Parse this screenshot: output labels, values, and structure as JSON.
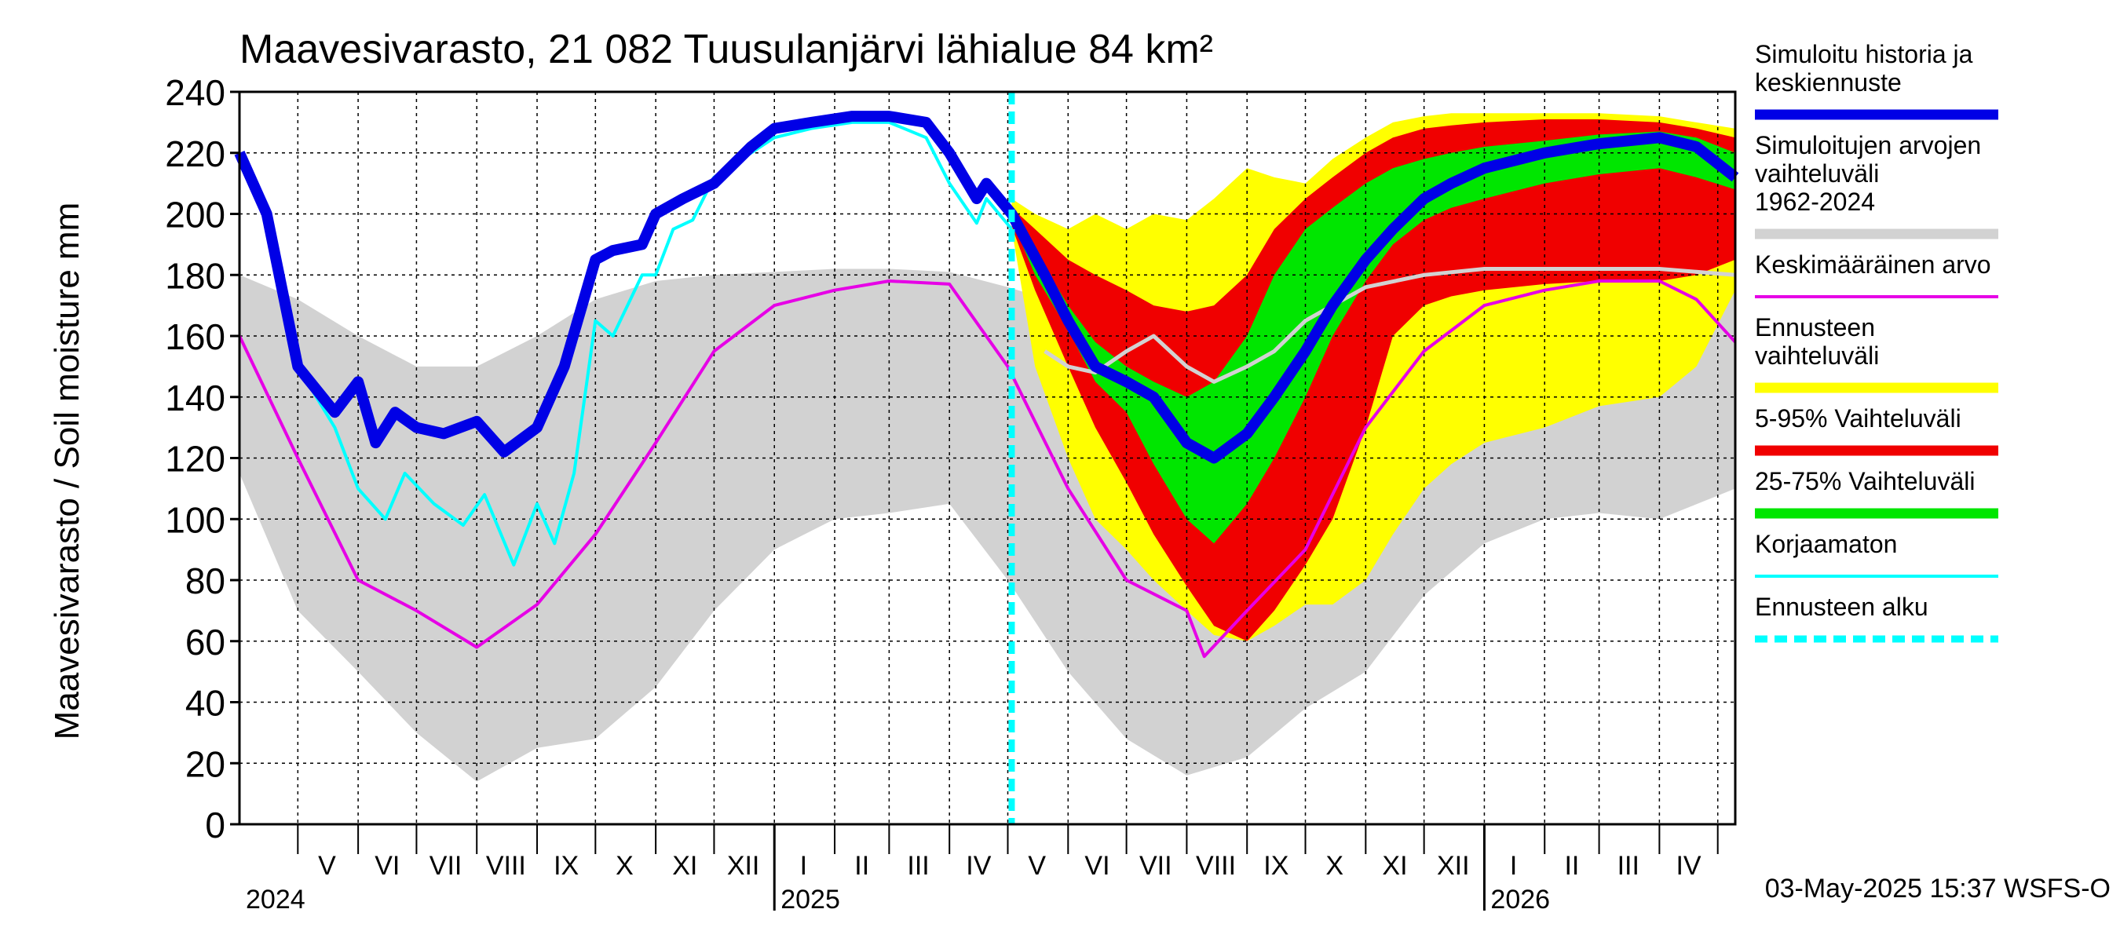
{
  "chart_data": {
    "type": "area",
    "title": "Maavesivarasto, 21 082 Tuusulanjärvi lähialue 84 km²",
    "ylabel": "Maavesivarasto / Soil moisture   mm",
    "ylim": [
      0,
      240
    ],
    "yticks": [
      0,
      20,
      40,
      60,
      80,
      100,
      120,
      140,
      160,
      180,
      200,
      220,
      240
    ],
    "grid": true,
    "legend_position": "right",
    "x_start": "2024-04-01",
    "x_end": "2026-05-10",
    "forecast_start": "2025-05-03",
    "month_labels": [
      {
        "label": "V",
        "date": "2024-05-16"
      },
      {
        "label": "VI",
        "date": "2024-06-16"
      },
      {
        "label": "VII",
        "date": "2024-07-16"
      },
      {
        "label": "VIII",
        "date": "2024-08-16"
      },
      {
        "label": "IX",
        "date": "2024-09-16"
      },
      {
        "label": "X",
        "date": "2024-10-16"
      },
      {
        "label": "XI",
        "date": "2024-11-16"
      },
      {
        "label": "XII",
        "date": "2024-12-16"
      },
      {
        "label": "I",
        "date": "2025-01-16"
      },
      {
        "label": "II",
        "date": "2025-02-15"
      },
      {
        "label": "III",
        "date": "2025-03-16"
      },
      {
        "label": "IV",
        "date": "2025-04-16"
      },
      {
        "label": "V",
        "date": "2025-05-16"
      },
      {
        "label": "VI",
        "date": "2025-06-16"
      },
      {
        "label": "VII",
        "date": "2025-07-16"
      },
      {
        "label": "VIII",
        "date": "2025-08-16"
      },
      {
        "label": "IX",
        "date": "2025-09-16"
      },
      {
        "label": "X",
        "date": "2025-10-16"
      },
      {
        "label": "XI",
        "date": "2025-11-16"
      },
      {
        "label": "XII",
        "date": "2025-12-16"
      },
      {
        "label": "I",
        "date": "2026-01-16"
      },
      {
        "label": "II",
        "date": "2026-02-15"
      },
      {
        "label": "III",
        "date": "2026-03-16"
      },
      {
        "label": "IV",
        "date": "2026-04-16"
      }
    ],
    "month_boundaries": [
      "2024-05-01",
      "2024-06-01",
      "2024-07-01",
      "2024-08-01",
      "2024-09-01",
      "2024-10-01",
      "2024-11-01",
      "2024-12-01",
      "2025-01-01",
      "2025-02-01",
      "2025-03-01",
      "2025-04-01",
      "2025-05-01",
      "2025-06-01",
      "2025-07-01",
      "2025-08-01",
      "2025-09-01",
      "2025-10-01",
      "2025-11-01",
      "2025-12-01",
      "2026-01-01",
      "2026-02-01",
      "2026-03-01",
      "2026-04-01",
      "2026-05-01"
    ],
    "year_boundaries": [
      "2025-01-01",
      "2026-01-01"
    ],
    "year_labels": [
      {
        "label": "2024",
        "date": "2024-04-01"
      },
      {
        "label": "2025",
        "date": "2025-01-01"
      },
      {
        "label": "2026",
        "date": "2026-01-01"
      }
    ],
    "timestamp": "03-May-2025 15:37 WSFS-O",
    "legend": [
      {
        "label": "Simuloitu historia ja keskiennuste",
        "color": "#0000e6",
        "style": "thick"
      },
      {
        "label": "Simuloitujen arvojen vaihteluväli 1962-2024",
        "color": "#d2d2d2",
        "style": "band"
      },
      {
        "label": "Keskimääräinen arvo",
        "color": "#e600e6",
        "style": "line"
      },
      {
        "label": "Ennusteen vaihteluväli",
        "color": "#ffff00",
        "style": "band"
      },
      {
        "label": "5-95% Vaihteluväli",
        "color": "#f00000",
        "style": "band"
      },
      {
        "label": "25-75% Vaihteluväli",
        "color": "#00e600",
        "style": "band"
      },
      {
        "label": "Korjaamaton",
        "color": "#00ffff",
        "style": "line"
      },
      {
        "label": "Ennusteen alku",
        "color": "#00ffff",
        "style": "dashed"
      }
    ],
    "series": [
      {
        "name": "Simuloitujen arvojen vaihteluväli 1962-2024",
        "kind": "band",
        "color": "#d2d2d2",
        "x": [
          "2024-04-01",
          "2024-05-01",
          "2024-06-01",
          "2024-07-01",
          "2024-08-01",
          "2024-09-01",
          "2024-10-01",
          "2024-11-01",
          "2024-12-01",
          "2025-01-01",
          "2025-02-01",
          "2025-03-01",
          "2025-04-01",
          "2025-05-01",
          "2025-06-01",
          "2025-07-01",
          "2025-08-01",
          "2025-09-01",
          "2025-10-01",
          "2025-11-01",
          "2025-12-01",
          "2026-01-01",
          "2026-02-01",
          "2026-03-01",
          "2026-04-01",
          "2026-05-10"
        ],
        "low": [
          115,
          70,
          50,
          30,
          14,
          25,
          28,
          45,
          70,
          90,
          100,
          102,
          105,
          80,
          50,
          28,
          16,
          22,
          38,
          50,
          75,
          92,
          100,
          102,
          100,
          110
        ],
        "high": [
          180,
          172,
          160,
          150,
          150,
          160,
          172,
          178,
          180,
          181,
          182,
          182,
          181,
          176,
          170,
          175,
          176,
          172,
          175,
          180,
          182,
          182,
          182,
          182,
          181,
          180
        ]
      },
      {
        "name": "Ennusteen vaihteluväli",
        "kind": "band",
        "color": "#ffff00",
        "x": [
          "2025-05-03",
          "2025-05-15",
          "2025-06-01",
          "2025-06-15",
          "2025-07-01",
          "2025-07-15",
          "2025-08-01",
          "2025-08-15",
          "2025-09-01",
          "2025-09-15",
          "2025-10-01",
          "2025-10-15",
          "2025-11-01",
          "2025-11-15",
          "2025-12-01",
          "2025-12-15",
          "2026-01-01",
          "2026-02-01",
          "2026-03-01",
          "2026-04-01",
          "2026-04-20",
          "2026-05-10"
        ],
        "low": [
          195,
          150,
          120,
          100,
          90,
          80,
          70,
          62,
          60,
          65,
          72,
          72,
          80,
          95,
          110,
          118,
          125,
          130,
          137,
          140,
          150,
          175
        ],
        "high": [
          205,
          200,
          195,
          200,
          195,
          200,
          198,
          205,
          215,
          212,
          210,
          218,
          225,
          230,
          232,
          233,
          233,
          233,
          233,
          232,
          230,
          228
        ]
      },
      {
        "name": "5-95% Vaihteluväli",
        "kind": "band",
        "color": "#f00000",
        "x": [
          "2025-05-03",
          "2025-05-15",
          "2025-06-01",
          "2025-06-15",
          "2025-07-01",
          "2025-07-15",
          "2025-08-01",
          "2025-08-15",
          "2025-09-01",
          "2025-09-15",
          "2025-10-01",
          "2025-10-15",
          "2025-11-01",
          "2025-11-15",
          "2025-12-01",
          "2025-12-15",
          "2026-01-01",
          "2026-02-01",
          "2026-03-01",
          "2026-04-01",
          "2026-04-20",
          "2026-05-10"
        ],
        "low": [
          196,
          175,
          150,
          130,
          112,
          95,
          78,
          65,
          60,
          70,
          85,
          100,
          130,
          160,
          170,
          173,
          175,
          177,
          178,
          178,
          180,
          185
        ],
        "high": [
          202,
          195,
          185,
          180,
          175,
          170,
          168,
          170,
          180,
          195,
          205,
          212,
          220,
          225,
          228,
          229,
          230,
          231,
          231,
          230,
          228,
          225
        ]
      },
      {
        "name": "25-75% Vaihteluväli",
        "kind": "band",
        "color": "#00e600",
        "x": [
          "2025-05-03",
          "2025-05-15",
          "2025-06-01",
          "2025-06-15",
          "2025-07-01",
          "2025-07-15",
          "2025-08-01",
          "2025-08-15",
          "2025-09-01",
          "2025-09-15",
          "2025-10-01",
          "2025-10-15",
          "2025-11-01",
          "2025-11-15",
          "2025-12-01",
          "2025-12-15",
          "2026-01-01",
          "2026-02-01",
          "2026-03-01",
          "2026-04-01",
          "2026-04-20",
          "2026-05-10"
        ],
        "low": [
          198,
          180,
          162,
          145,
          135,
          118,
          100,
          92,
          105,
          120,
          140,
          160,
          178,
          190,
          198,
          202,
          205,
          210,
          213,
          215,
          212,
          208
        ],
        "high": [
          200,
          188,
          170,
          158,
          150,
          145,
          140,
          145,
          160,
          180,
          195,
          202,
          210,
          215,
          218,
          220,
          222,
          224,
          226,
          227,
          225,
          220
        ]
      },
      {
        "name": "Keskimääräinen arvo",
        "kind": "line",
        "color": "#e600e6",
        "x": [
          "2024-04-01",
          "2024-05-01",
          "2024-06-01",
          "2024-07-01",
          "2024-08-01",
          "2024-09-01",
          "2024-10-01",
          "2024-11-01",
          "2024-12-01",
          "2025-01-01",
          "2025-02-01",
          "2025-03-01",
          "2025-04-01",
          "2025-05-01",
          "2025-06-01",
          "2025-07-01",
          "2025-08-01",
          "2025-08-10",
          "2025-09-01",
          "2025-10-01",
          "2025-11-01",
          "2025-12-01",
          "2026-01-01",
          "2026-02-01",
          "2026-03-01",
          "2026-04-01",
          "2026-04-20",
          "2026-05-10"
        ],
        "y": [
          160,
          120,
          80,
          70,
          58,
          72,
          95,
          125,
          155,
          170,
          175,
          178,
          177,
          150,
          110,
          80,
          70,
          55,
          70,
          90,
          130,
          155,
          170,
          175,
          178,
          178,
          172,
          158
        ]
      },
      {
        "name": "Korjaamaton",
        "kind": "line",
        "color": "#00ffff",
        "x": [
          "2024-04-01",
          "2024-04-15",
          "2024-05-01",
          "2024-05-20",
          "2024-06-01",
          "2024-06-15",
          "2024-06-25",
          "2024-07-10",
          "2024-07-25",
          "2024-08-05",
          "2024-08-20",
          "2024-09-01",
          "2024-09-10",
          "2024-09-20",
          "2024-10-01",
          "2024-10-10",
          "2024-10-25",
          "2024-11-01",
          "2024-11-10",
          "2024-11-20",
          "2024-12-01",
          "2024-12-20",
          "2025-01-01",
          "2025-01-20",
          "2025-02-10",
          "2025-03-01",
          "2025-03-20",
          "2025-04-01",
          "2025-04-15",
          "2025-04-20",
          "2025-05-03"
        ],
        "y": [
          220,
          200,
          150,
          130,
          110,
          100,
          115,
          105,
          98,
          108,
          85,
          105,
          92,
          115,
          165,
          160,
          180,
          180,
          195,
          198,
          212,
          220,
          225,
          228,
          230,
          230,
          225,
          210,
          197,
          205,
          195
        ]
      },
      {
        "name": "Simuloitu historia ja keskiennuste",
        "kind": "line",
        "color": "#0000e6",
        "x": [
          "2024-04-01",
          "2024-04-15",
          "2024-05-01",
          "2024-05-20",
          "2024-06-01",
          "2024-06-10",
          "2024-06-20",
          "2024-07-01",
          "2024-07-15",
          "2024-08-01",
          "2024-08-15",
          "2024-09-01",
          "2024-09-15",
          "2024-10-01",
          "2024-10-10",
          "2024-10-25",
          "2024-11-01",
          "2024-11-15",
          "2024-12-01",
          "2024-12-20",
          "2025-01-01",
          "2025-01-20",
          "2025-02-10",
          "2025-03-01",
          "2025-03-20",
          "2025-04-01",
          "2025-04-15",
          "2025-04-20",
          "2025-05-03",
          "2025-05-20",
          "2025-06-01",
          "2025-06-15",
          "2025-07-01",
          "2025-07-15",
          "2025-08-01",
          "2025-08-15",
          "2025-09-01",
          "2025-09-15",
          "2025-10-01",
          "2025-10-15",
          "2025-11-01",
          "2025-11-15",
          "2025-12-01",
          "2025-12-15",
          "2026-01-01",
          "2026-02-01",
          "2026-03-01",
          "2026-04-01",
          "2026-04-20",
          "2026-05-10"
        ],
        "y": [
          220,
          200,
          150,
          135,
          145,
          125,
          135,
          130,
          128,
          132,
          122,
          130,
          150,
          185,
          188,
          190,
          200,
          205,
          210,
          222,
          228,
          230,
          232,
          232,
          230,
          220,
          205,
          210,
          200,
          180,
          165,
          150,
          145,
          140,
          125,
          120,
          128,
          140,
          155,
          170,
          185,
          195,
          205,
          210,
          215,
          220,
          223,
          225,
          222,
          212
        ]
      },
      {
        "name": "",
        "kind": "line",
        "color": "#d2d2d2",
        "x": [
          "2025-05-20",
          "2025-06-01",
          "2025-06-15",
          "2025-07-01",
          "2025-07-15",
          "2025-08-01",
          "2025-08-15",
          "2025-09-01",
          "2025-09-15",
          "2025-10-01",
          "2025-10-15",
          "2025-11-01",
          "2025-12-01",
          "2026-01-01",
          "2026-02-01",
          "2026-03-01",
          "2026-04-01",
          "2026-05-10"
        ],
        "y": [
          155,
          150,
          148,
          155,
          160,
          150,
          145,
          150,
          155,
          165,
          170,
          176,
          180,
          182,
          182,
          182,
          182,
          180
        ]
      }
    ]
  }
}
